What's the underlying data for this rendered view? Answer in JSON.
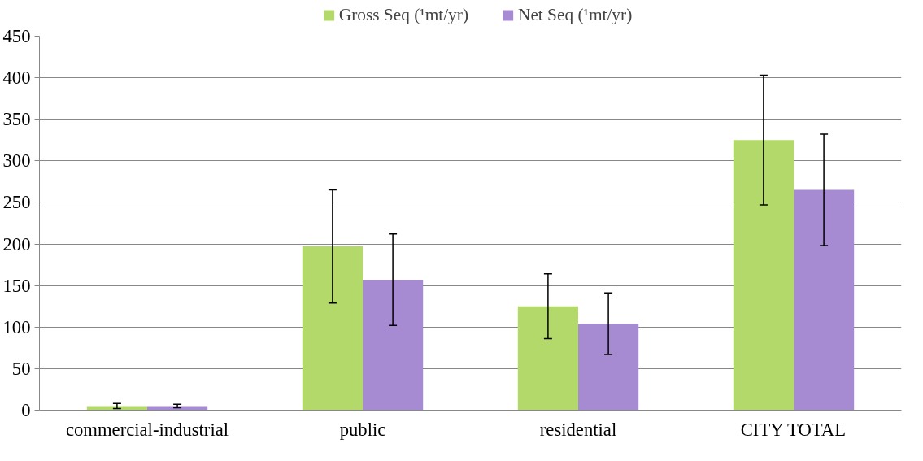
{
  "chart_data": {
    "type": "bar",
    "categories": [
      "commercial-industrial",
      "public",
      "residential",
      "CITY TOTAL"
    ],
    "series": [
      {
        "name": "Gross Seq (¹mt/yr)",
        "color": "#b3d96a",
        "values": [
          5,
          197,
          125,
          325
        ],
        "errors": [
          3,
          68,
          39,
          78
        ]
      },
      {
        "name": "Net Seq (¹mt/yr)",
        "color": "#a68bd2",
        "values": [
          5,
          157,
          104,
          265
        ],
        "errors": [
          2,
          55,
          37,
          67
        ]
      }
    ],
    "ylim": [
      0,
      450
    ],
    "yticks": [
      0,
      50,
      100,
      150,
      200,
      250,
      300,
      350,
      400,
      450
    ],
    "grid": "y",
    "legend": "top"
  }
}
